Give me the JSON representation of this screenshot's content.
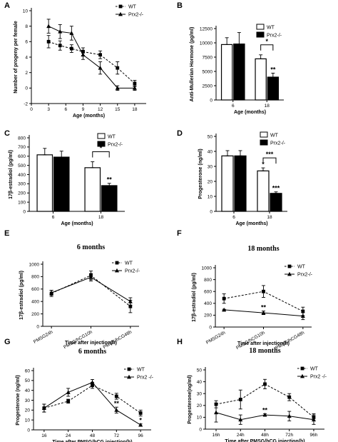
{
  "chart_data": [
    {
      "panel": "A",
      "type": "line",
      "xlabel": "Age (months)",
      "ylabel": "Number of progeny per female",
      "xlim": [
        0,
        20
      ],
      "ylim": [
        -2,
        10
      ],
      "xticks": [
        0,
        3,
        6,
        9,
        12,
        15,
        18
      ],
      "yticks": [
        -2,
        0,
        2,
        4,
        6,
        8,
        10
      ],
      "legend_position": "top-right",
      "series": [
        {
          "name": "WT",
          "marker": "square",
          "dashed": true,
          "x": [
            3,
            5,
            7,
            9,
            12,
            15,
            18
          ],
          "y": [
            6,
            5.5,
            5.1,
            4.7,
            4.3,
            2.6,
            0.6
          ],
          "err": [
            0.8,
            0.6,
            0.5,
            0.5,
            0.5,
            0.8,
            0.4
          ]
        },
        {
          "name": "Prx2-/-",
          "marker": "triangle",
          "dashed": false,
          "x": [
            3,
            5,
            7,
            9,
            12,
            15,
            18
          ],
          "y": [
            8,
            7.3,
            7.1,
            4.3,
            2.6,
            0,
            0
          ],
          "err": [
            0.9,
            0.9,
            0.9,
            0.6,
            0.8,
            0.3,
            0.3
          ]
        }
      ]
    },
    {
      "panel": "B",
      "type": "bar",
      "xlabel": "Age (months)",
      "ylabel": "Anti-Mullerian Hormone (pg/ml)",
      "ylim": [
        0,
        12500
      ],
      "yticks": [
        0,
        2500,
        5000,
        7500,
        10000,
        12500
      ],
      "categories": [
        "6",
        "18"
      ],
      "legend_position": "top-right",
      "series": [
        {
          "name": "WT",
          "fill": "#ffffff",
          "values": [
            9700,
            7200
          ],
          "err": [
            1200,
            700
          ],
          "stars": [
            "",
            ""
          ]
        },
        {
          "name": "Prx2-/-",
          "fill": "#000000",
          "values": [
            9800,
            4000
          ],
          "err": [
            2000,
            700
          ],
          "stars": [
            "",
            "**"
          ]
        }
      ],
      "comparisons": [
        {
          "category": 1,
          "label": "*"
        }
      ]
    },
    {
      "panel": "C",
      "type": "bar",
      "xlabel": "Age (months)",
      "ylabel": "17β-estradiol (pg/ml)",
      "ylim": [
        0,
        800
      ],
      "yticks": [
        0,
        100,
        200,
        300,
        400,
        500,
        600,
        700,
        800
      ],
      "categories": [
        "6",
        "18"
      ],
      "legend_position": "top-right",
      "series": [
        {
          "name": "WT",
          "fill": "#ffffff",
          "values": [
            615,
            475
          ],
          "err": [
            70,
            65
          ],
          "stars": [
            "",
            ""
          ]
        },
        {
          "name": "Prx2-/-",
          "fill": "#000000",
          "values": [
            590,
            280
          ],
          "err": [
            65,
            25
          ],
          "stars": [
            "",
            "**"
          ]
        }
      ],
      "comparisons": [
        {
          "category": 1,
          "label": "*"
        }
      ]
    },
    {
      "panel": "D",
      "type": "bar",
      "xlabel": "Age (months)",
      "ylabel": "Progesterone (ng/ml)",
      "ylim": [
        0,
        50
      ],
      "yticks": [
        0,
        10,
        20,
        30,
        40,
        50
      ],
      "categories": [
        "6",
        "18"
      ],
      "legend_position": "top-right",
      "series": [
        {
          "name": "WT",
          "fill": "#ffffff",
          "values": [
            37,
            27
          ],
          "err": [
            3.5,
            2
          ],
          "stars": [
            "",
            "*"
          ]
        },
        {
          "name": "Prx2-/-",
          "fill": "#000000",
          "values": [
            37,
            12
          ],
          "err": [
            3.5,
            1
          ],
          "stars": [
            "",
            "***"
          ]
        }
      ],
      "comparisons": [
        {
          "category": 1,
          "label": "***"
        }
      ]
    },
    {
      "panel": "E",
      "type": "line",
      "title": "6 months",
      "xlabel": "Time after injection(h)",
      "ylabel": "17β-estradiol (pg/ml)",
      "ylim": [
        0,
        1000
      ],
      "yticks": [
        0,
        200,
        400,
        600,
        800,
        1000
      ],
      "categories": [
        "PMSG24h",
        "PMSG/hCG10h",
        "PMSG/hCG48h"
      ],
      "legend_position": "top-right",
      "series": [
        {
          "name": "WT",
          "marker": "square",
          "dashed": true,
          "y": [
            530,
            820,
            320
          ],
          "err": [
            50,
            70,
            100
          ],
          "stars": [
            "",
            "",
            ""
          ]
        },
        {
          "name": "Prx2-/-",
          "marker": "triangle",
          "dashed": false,
          "y": [
            540,
            790,
            400
          ],
          "err": [
            40,
            60,
            60
          ],
          "stars": [
            "",
            "",
            ""
          ]
        }
      ]
    },
    {
      "panel": "F",
      "type": "line",
      "title": "18 months",
      "xlabel": "Time after injection(h)",
      "ylabel": "17β-estradiol (pg/ml)",
      "ylim": [
        0,
        1000
      ],
      "yticks": [
        0,
        200,
        400,
        600,
        800,
        1000
      ],
      "categories": [
        "PMSG24h",
        "PMSG/hCG10h",
        "PMSG/hCG48h"
      ],
      "legend_position": "top-right",
      "series": [
        {
          "name": "WT",
          "marker": "square",
          "dashed": true,
          "y": [
            480,
            600,
            265
          ],
          "err": [
            80,
            100,
            70
          ],
          "stars": [
            "",
            "",
            ""
          ]
        },
        {
          "name": "Prx2-/-",
          "marker": "triangle",
          "dashed": false,
          "y": [
            290,
            240,
            185
          ],
          "err": [
            10,
            30,
            60
          ],
          "stars": [
            "",
            "**",
            ""
          ]
        }
      ]
    },
    {
      "panel": "G",
      "type": "line",
      "title": "6 months",
      "xlabel": "Time after PMSG/hCG injection(h)",
      "ylabel": "Progesterone (ng/ml)",
      "ylim": [
        0,
        60
      ],
      "yticks": [
        0,
        10,
        20,
        30,
        40,
        50,
        60
      ],
      "categories": [
        "16",
        "24",
        "48",
        "72",
        "96"
      ],
      "legend_position": "top-right",
      "series": [
        {
          "name": "WT",
          "marker": "square",
          "dashed": true,
          "y": [
            22,
            29,
            45,
            34,
            17
          ],
          "err": [
            4,
            2,
            3,
            3,
            3
          ],
          "stars": [
            "",
            "",
            "",
            "",
            ""
          ]
        },
        {
          "name": "Prx2 -/-",
          "marker": "triangle",
          "dashed": false,
          "y": [
            22,
            38,
            48,
            20,
            5
          ],
          "err": [
            4,
            4,
            3,
            3,
            1
          ],
          "stars": [
            "",
            "",
            "",
            "**",
            "*"
          ]
        }
      ]
    },
    {
      "panel": "H",
      "type": "line",
      "title": "18 months",
      "xlabel": "Time after PMSG/hCG injection(h)",
      "ylabel": "Progesterone(ng/ml)",
      "ylim": [
        0,
        50
      ],
      "yticks": [
        0,
        10,
        20,
        30,
        40,
        50
      ],
      "categories": [
        "16h",
        "24h",
        "48h",
        "72h",
        "96h"
      ],
      "legend_position": "top-right",
      "series": [
        {
          "name": "WT",
          "marker": "square",
          "dashed": true,
          "y": [
            21,
            25,
            38,
            27,
            10
          ],
          "err": [
            3,
            8,
            4,
            3,
            3
          ],
          "stars": [
            "",
            "",
            "",
            "",
            ""
          ]
        },
        {
          "name": "Prx2 -/-",
          "marker": "triangle",
          "dashed": false,
          "y": [
            14,
            8,
            12,
            11,
            8
          ],
          "err": [
            8,
            4,
            1,
            4,
            4
          ],
          "stars": [
            "",
            "",
            "**",
            "",
            ""
          ]
        }
      ]
    }
  ]
}
